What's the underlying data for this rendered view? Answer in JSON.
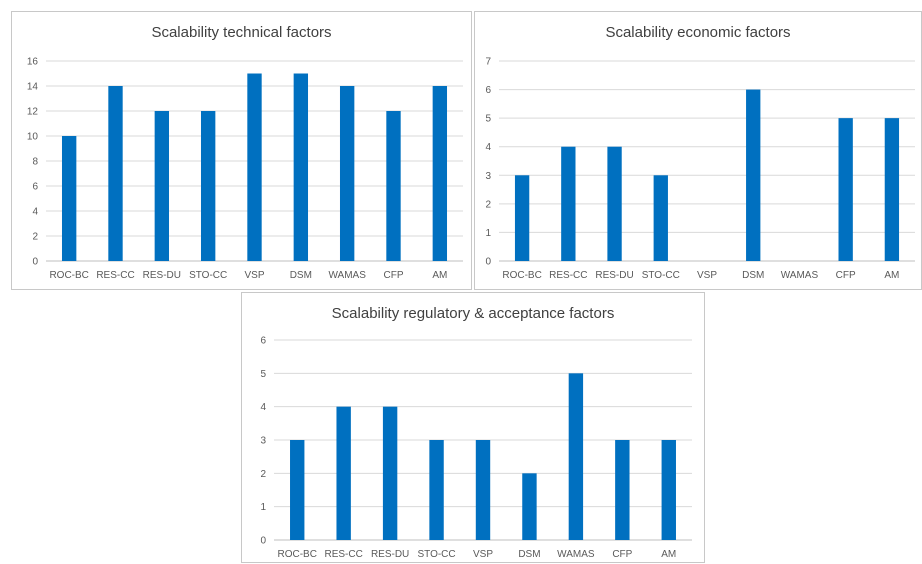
{
  "chart_data": [
    {
      "type": "bar",
      "title": "Scalability technical factors",
      "categories": [
        "ROC-BC",
        "RES-CC",
        "RES-DU",
        "STO-CC",
        "VSP",
        "DSM",
        "WAMAS",
        "CFP",
        "AM"
      ],
      "values": [
        10,
        14,
        12,
        12,
        15,
        15,
        14,
        12,
        14
      ],
      "ylim": [
        0,
        16
      ],
      "yticks": [
        0,
        2,
        4,
        6,
        8,
        10,
        12,
        14,
        16
      ],
      "xlabel": "",
      "ylabel": "",
      "grid": true,
      "color": "#0070C0"
    },
    {
      "type": "bar",
      "title": "Scalability economic factors",
      "categories": [
        "ROC-BC",
        "RES-CC",
        "RES-DU",
        "STO-CC",
        "VSP",
        "DSM",
        "WAMAS",
        "CFP",
        "AM"
      ],
      "values": [
        3,
        4,
        4,
        3,
        0,
        6,
        0,
        5,
        5
      ],
      "ylim": [
        0,
        7
      ],
      "yticks": [
        0,
        1,
        2,
        3,
        4,
        5,
        6,
        7
      ],
      "xlabel": "",
      "ylabel": "",
      "grid": true,
      "color": "#0070C0"
    },
    {
      "type": "bar",
      "title": "Scalability regulatory & acceptance factors",
      "categories": [
        "ROC-BC",
        "RES-CC",
        "RES-DU",
        "STO-CC",
        "VSP",
        "DSM",
        "WAMAS",
        "CFP",
        "AM"
      ],
      "values": [
        3,
        4,
        4,
        3,
        3,
        2,
        5,
        3,
        3
      ],
      "ylim": [
        0,
        6
      ],
      "yticks": [
        0,
        1,
        2,
        3,
        4,
        5,
        6
      ],
      "xlabel": "",
      "ylabel": "",
      "grid": true,
      "color": "#0070C0"
    }
  ]
}
